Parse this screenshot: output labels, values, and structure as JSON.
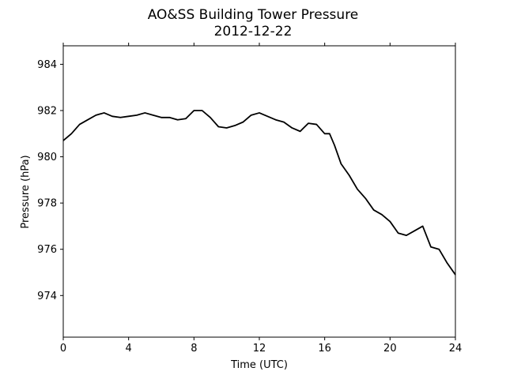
{
  "chart_data": {
    "type": "line",
    "title": "AO&SS Building Tower Pressure",
    "subtitle": "2012-12-22",
    "xlabel": "Time (UTC)",
    "ylabel": "Pressure (hPa)",
    "xlim": [
      0,
      24
    ],
    "ylim": [
      972.2,
      984.8
    ],
    "xticks": [
      0,
      4,
      8,
      12,
      16,
      20,
      24
    ],
    "yticks": [
      974,
      976,
      978,
      980,
      982,
      984
    ],
    "grid": false,
    "legend": "none",
    "line_color": "#000000",
    "series": [
      {
        "x": [
          0,
          0.5,
          1,
          1.5,
          2,
          2.5,
          3,
          3.5,
          4,
          4.5,
          5,
          5.5,
          6,
          6.5,
          7,
          7.5,
          8,
          8.5,
          9,
          9.5,
          10,
          10.5,
          11,
          11.5,
          12,
          12.5,
          13,
          13.5,
          14,
          14.5,
          15,
          15.5,
          16,
          16.3,
          16.6,
          17,
          17.5,
          18,
          18.5,
          19,
          19.5,
          20,
          20.5,
          21,
          21.5,
          22,
          22.5,
          23,
          23.5,
          24
        ],
        "y": [
          980.7,
          981.0,
          981.4,
          981.6,
          981.8,
          981.9,
          981.75,
          981.7,
          981.75,
          981.8,
          981.9,
          981.8,
          981.7,
          981.7,
          981.6,
          981.65,
          982.0,
          982.0,
          981.7,
          981.3,
          981.25,
          981.35,
          981.5,
          981.8,
          981.9,
          981.75,
          981.6,
          981.5,
          981.25,
          981.1,
          981.45,
          981.4,
          981.0,
          981.0,
          980.5,
          979.7,
          979.2,
          978.6,
          978.2,
          977.7,
          977.5,
          977.2,
          976.7,
          976.6,
          976.8,
          977.0,
          976.1,
          976.0,
          975.4,
          974.9
        ]
      }
    ]
  }
}
